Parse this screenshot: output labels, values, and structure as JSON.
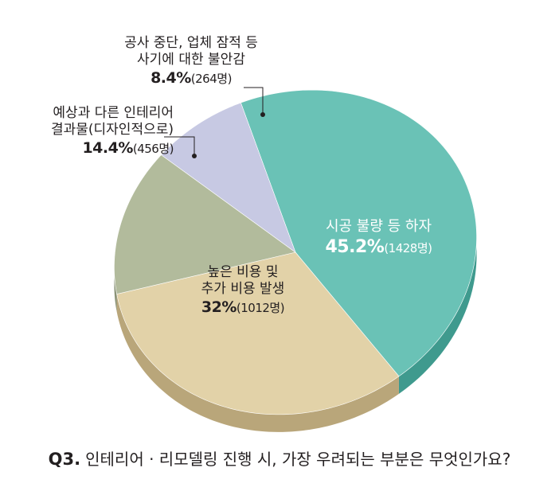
{
  "chart_data": {
    "type": "pie",
    "slices": [
      {
        "label": "시공 불량 등 하자",
        "value": 45.2,
        "percent_label": "45.2%",
        "count_label": "(1428명)",
        "color": "#6ac2b6",
        "side_color": "#3f9a8e"
      },
      {
        "label": "높은 비용 및 추가 비용 발생",
        "lines": [
          "높은 비용 및",
          "추가 비용 발생"
        ],
        "value": 32,
        "percent_label": "32%",
        "count_label": "(1012명)",
        "color": "#e2d2a8",
        "side_color": "#b9a67a"
      },
      {
        "label": "예상과 다른 인테리어 결과물(디자인적으로)",
        "lines": [
          "예상과 다른 인테리어",
          "결과물(디자인적으로)"
        ],
        "value": 14.4,
        "percent_label": "14.4%",
        "count_label": "(456명)",
        "color": "#b2bb9c",
        "side_color": "#8a9377"
      },
      {
        "label": "공사 중단, 업체 잠적 등 사기에 대한 불안감",
        "lines": [
          "공사 중단, 업체 잠적 등",
          "사기에 대한 불안감"
        ],
        "value": 8.4,
        "percent_label": "8.4%",
        "count_label": "(264명)",
        "color": "#c7c9e3",
        "side_color": "#9c9fc0"
      }
    ]
  },
  "question": {
    "number": "Q3.",
    "text": "인테리어 · 리모델링 진행 시, 가장 우려되는 부분은 무엇인가요?"
  }
}
